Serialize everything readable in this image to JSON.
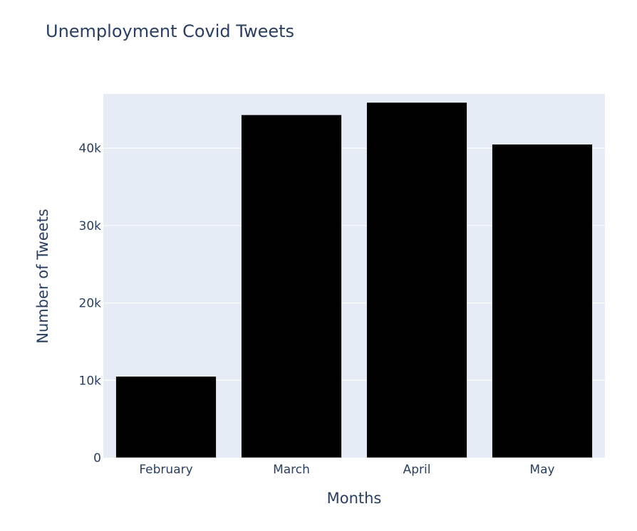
{
  "chart_data": {
    "type": "bar",
    "title": "Unemployment Covid Tweets",
    "xlabel": "Months",
    "ylabel": "Number of Tweets",
    "categories": [
      "February",
      "March",
      "April",
      "May"
    ],
    "values": [
      10500,
      44300,
      45900,
      40500
    ],
    "ylim": [
      0,
      47000
    ],
    "yticks": [
      0,
      10000,
      20000,
      30000,
      40000
    ],
    "ytick_labels": [
      "0",
      "10k",
      "20k",
      "30k",
      "40k"
    ],
    "grid": true,
    "colors": {
      "bar": "#000000",
      "plot_bg": "#e5ecf6",
      "text": "#2a3f5f",
      "grid": "#ffffff"
    }
  }
}
